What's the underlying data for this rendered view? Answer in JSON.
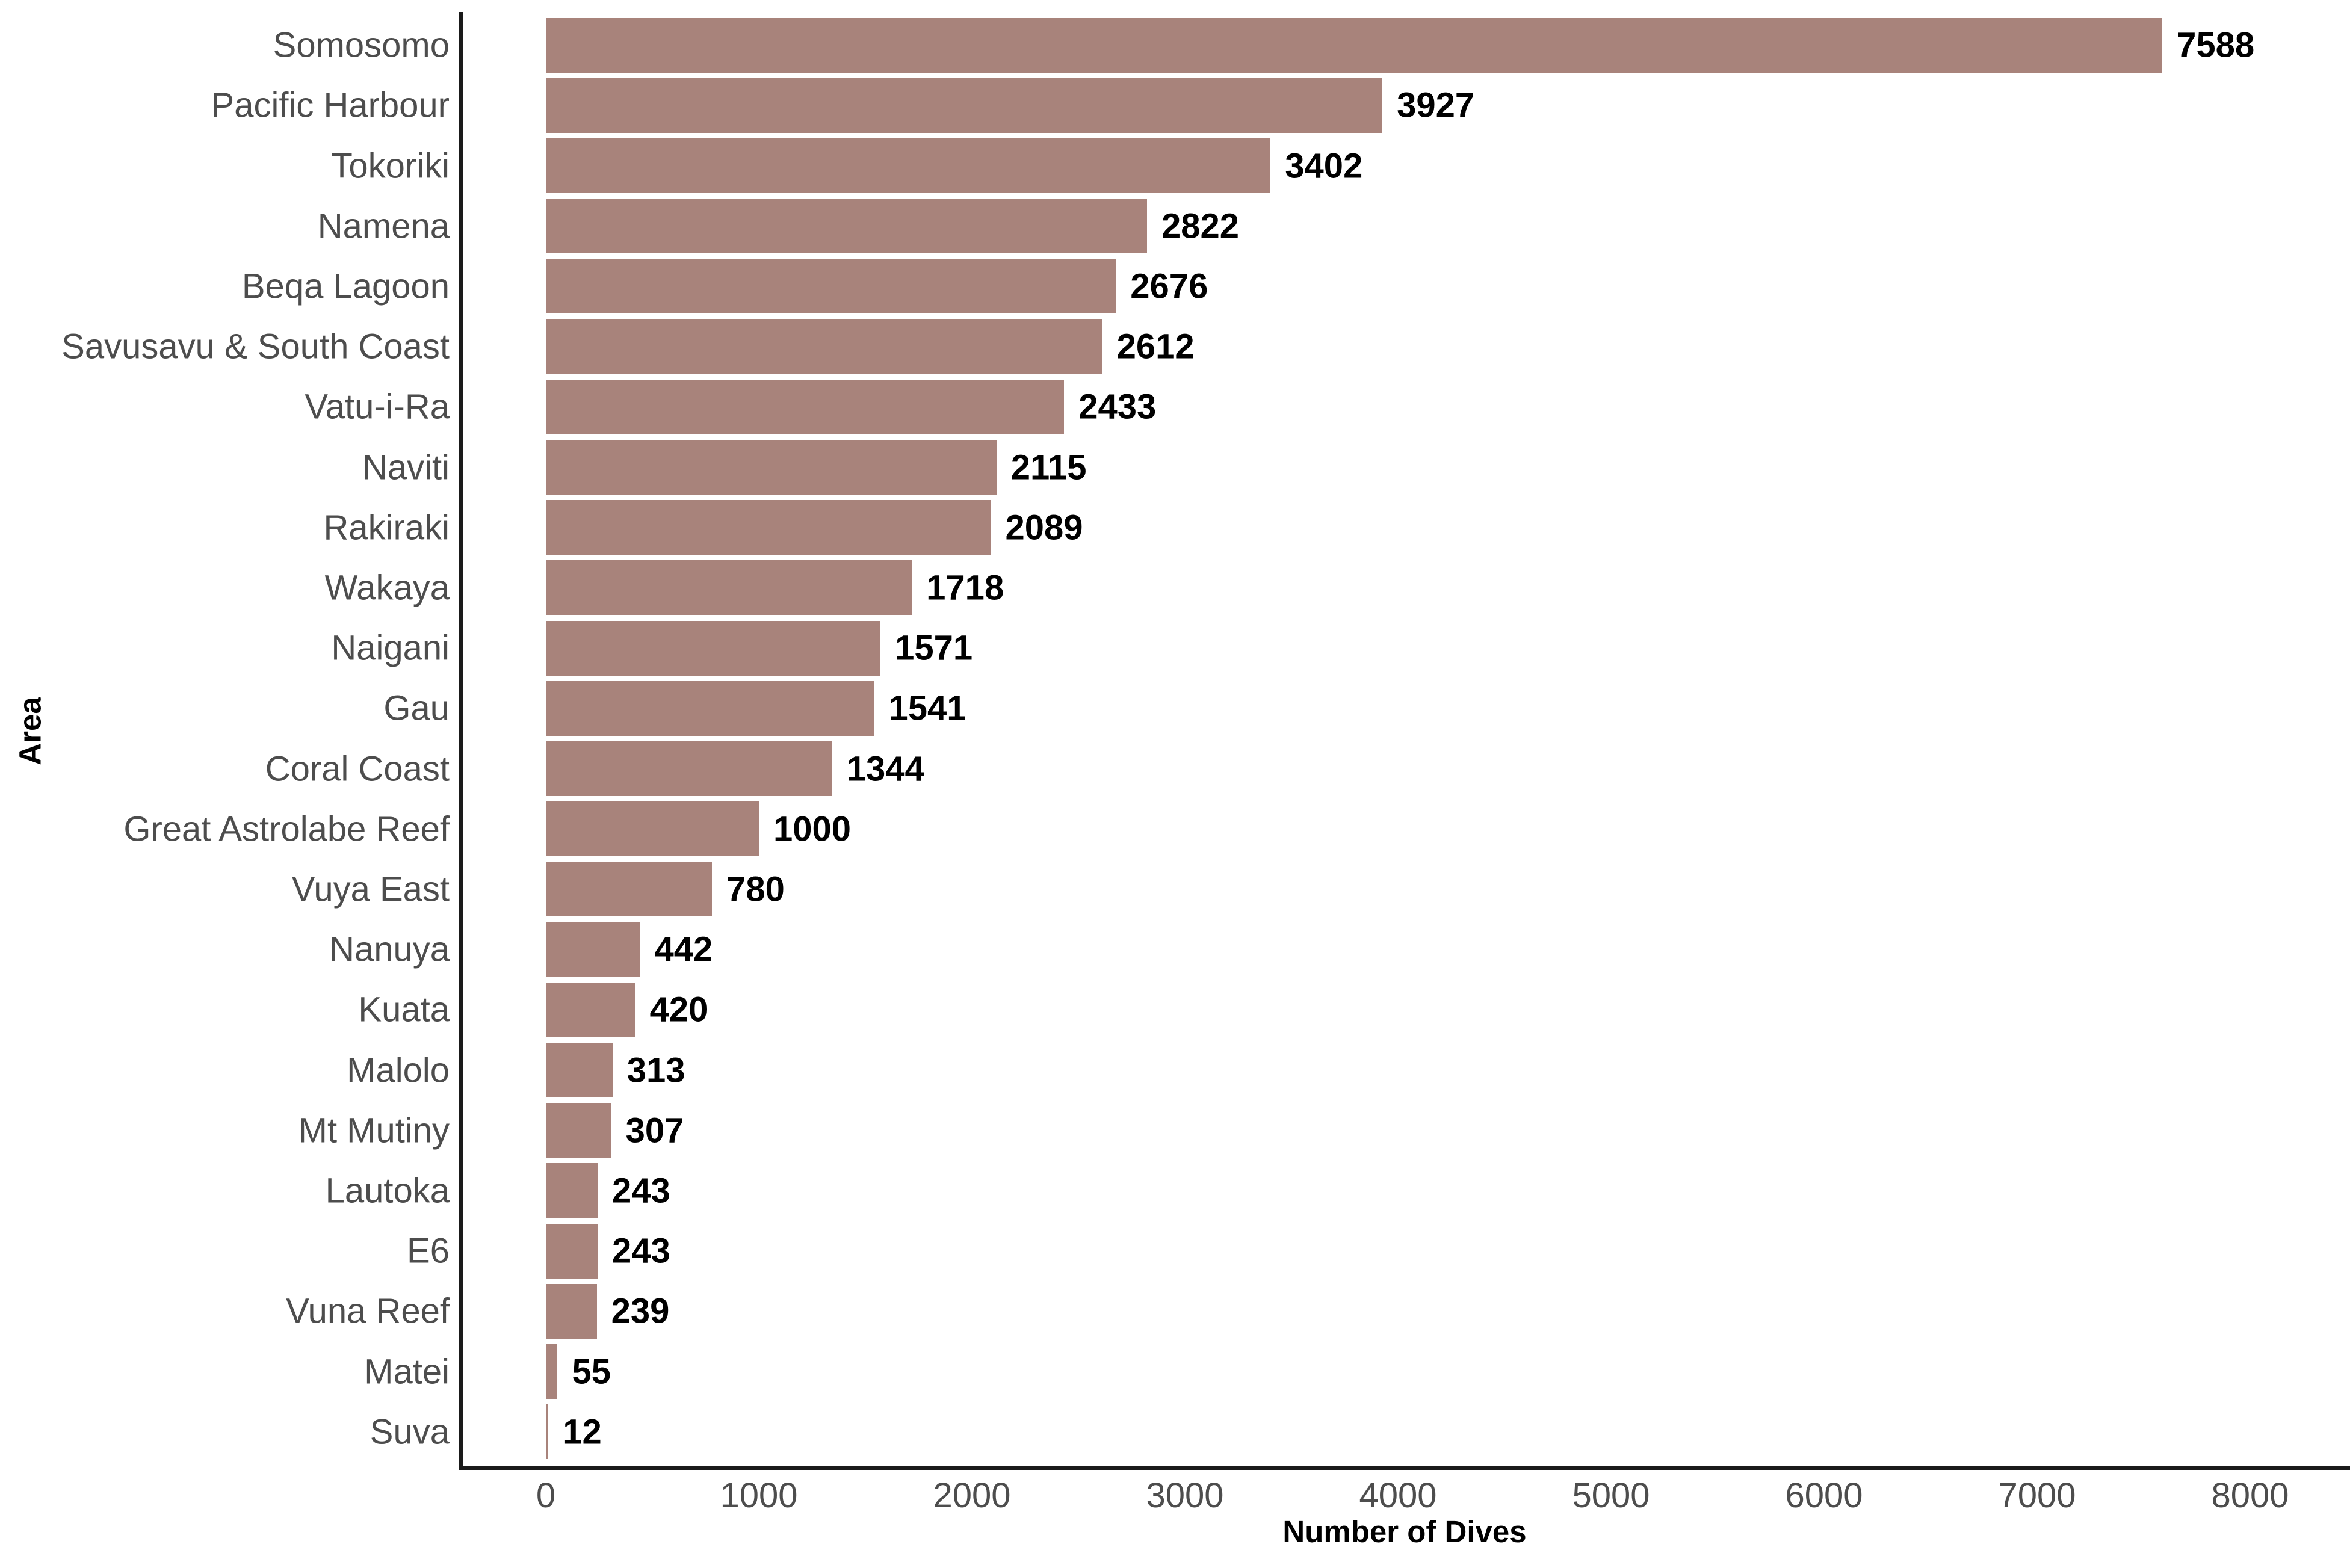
{
  "chart_data": {
    "type": "bar",
    "orientation": "horizontal",
    "title": "",
    "xlabel": "Number of Dives",
    "ylabel": "Area",
    "categories": [
      "Somosomo",
      "Pacific Harbour",
      "Tokoriki",
      "Namena",
      "Beqa Lagoon",
      "Savusavu & South Coast",
      "Vatu-i-Ra",
      "Naviti",
      "Rakiraki",
      "Wakaya",
      "Naigani",
      "Gau",
      "Coral Coast",
      "Great Astrolabe Reef",
      "Vuya East",
      "Nanuya",
      "Kuata",
      "Malolo",
      "Mt Mutiny",
      "Lautoka",
      "E6",
      "Vuna Reef",
      "Matei",
      "Suva"
    ],
    "values": [
      7588,
      3927,
      3402,
      2822,
      2676,
      2612,
      2433,
      2115,
      2089,
      1718,
      1571,
      1541,
      1344,
      1000,
      780,
      442,
      420,
      313,
      307,
      243,
      243,
      239,
      55,
      12
    ],
    "value_labels_shown": true,
    "xlim": [
      0,
      8000
    ],
    "x_ticks": [
      0,
      1000,
      2000,
      3000,
      4000,
      5000,
      6000,
      7000,
      8000
    ],
    "grid": false,
    "legend": false,
    "colors": {
      "bar": "#A8837B",
      "axis_text": "#4D4D4D",
      "value_label": "#000000",
      "axis_line": "#1A1A1A",
      "background": "#FFFFFF"
    }
  }
}
